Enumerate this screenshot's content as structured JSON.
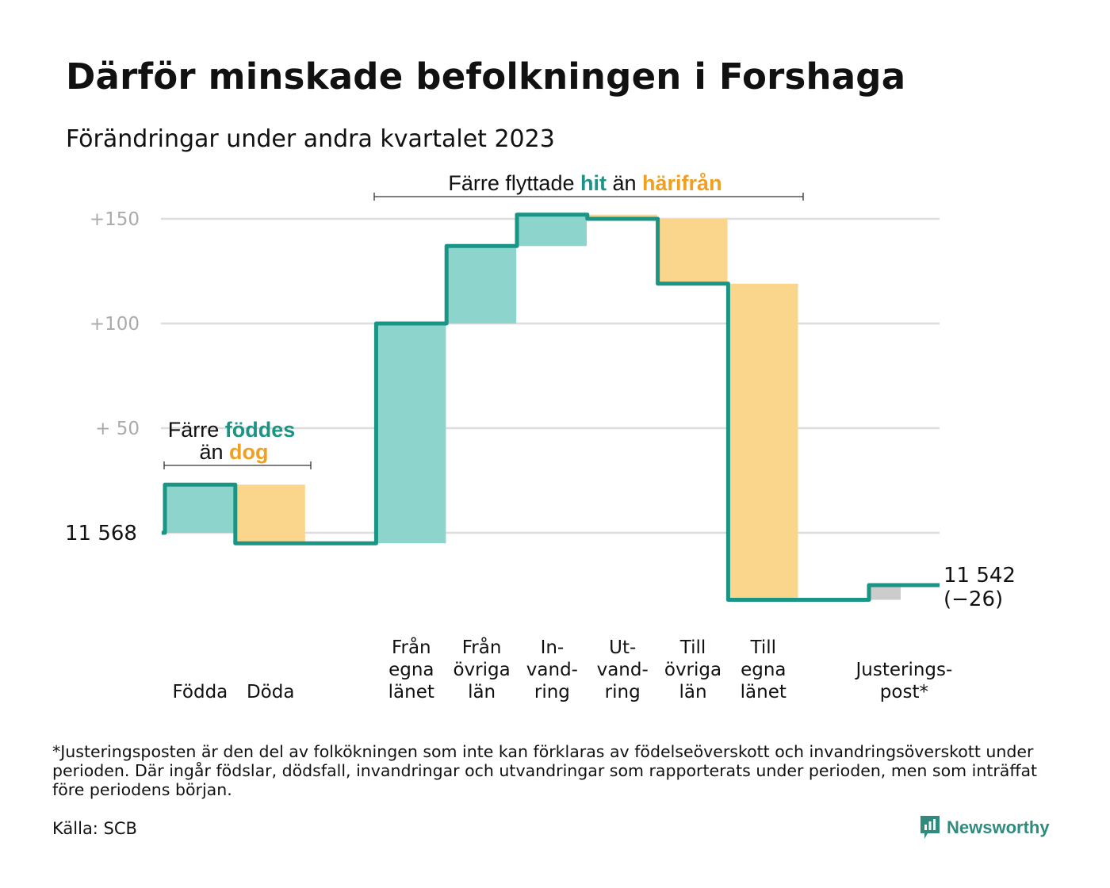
{
  "title": "Därför minskade befolkningen i Forshaga",
  "subtitle": "Förändringar under andra kvartalet 2023",
  "colors": {
    "teal_line": "#1a9484",
    "teal_fill": "#8dd5cc",
    "orange_fill": "#fad58c",
    "orange_text": "#f0a020",
    "gray_fill": "#cccccc",
    "grid": "#dddddd",
    "tick_text": "#aaaaaa"
  },
  "chart_data": {
    "type": "waterfall",
    "baseline": 0,
    "start_label": "11  568",
    "end_label": "11 542",
    "end_change_label": "(−26)",
    "y_ticks": [
      {
        "value": 50,
        "label": "+  50"
      },
      {
        "value": 100,
        "label": "+100"
      },
      {
        "value": 150,
        "label": "+150"
      }
    ],
    "ylim": [
      -35,
      160
    ],
    "steps": [
      {
        "label": [
          "Födda"
        ],
        "change": 23,
        "kind": "in"
      },
      {
        "label": [
          "Döda"
        ],
        "change": -28,
        "kind": "out"
      },
      {
        "label": [],
        "change": 0,
        "kind": "gap"
      },
      {
        "label": [
          "Från",
          "egna",
          "länet"
        ],
        "change": 105,
        "kind": "in"
      },
      {
        "label": [
          "Från",
          "övriga",
          "län"
        ],
        "change": 37,
        "kind": "in"
      },
      {
        "label": [
          "In-",
          "vand-",
          "ring"
        ],
        "change": 15,
        "kind": "in"
      },
      {
        "label": [
          "Ut-",
          "vand-",
          "ring"
        ],
        "change": -2,
        "kind": "out"
      },
      {
        "label": [
          "Till",
          "övriga",
          "län"
        ],
        "change": -31,
        "kind": "out"
      },
      {
        "label": [
          "Till",
          "egna",
          "länet"
        ],
        "change": -151,
        "kind": "out"
      },
      {
        "label": [],
        "change": 0,
        "kind": "gap"
      },
      {
        "label": [
          "Justerings-",
          "post*"
        ],
        "change": 7,
        "kind": "adjust"
      }
    ]
  },
  "annotations": {
    "births": {
      "prefix": "Färre ",
      "highlight1": "föddes",
      "line2_prefix": "än ",
      "highlight2": "dog"
    },
    "moves": {
      "prefix": "Färre flyttade ",
      "highlight1": "hit",
      "middle": " än ",
      "highlight2": "härifrån"
    }
  },
  "footnote": "*Justeringsposten är den del av folkökningen som inte kan förklaras av födelseöverskott och invandringsöverskott under perioden. Där ingår födslar, dödsfall, invandringar och utvandringar som rapporterats under perioden, men som inträffat före periodens början.",
  "source": "Källa: SCB",
  "brand": "Newsworthy"
}
